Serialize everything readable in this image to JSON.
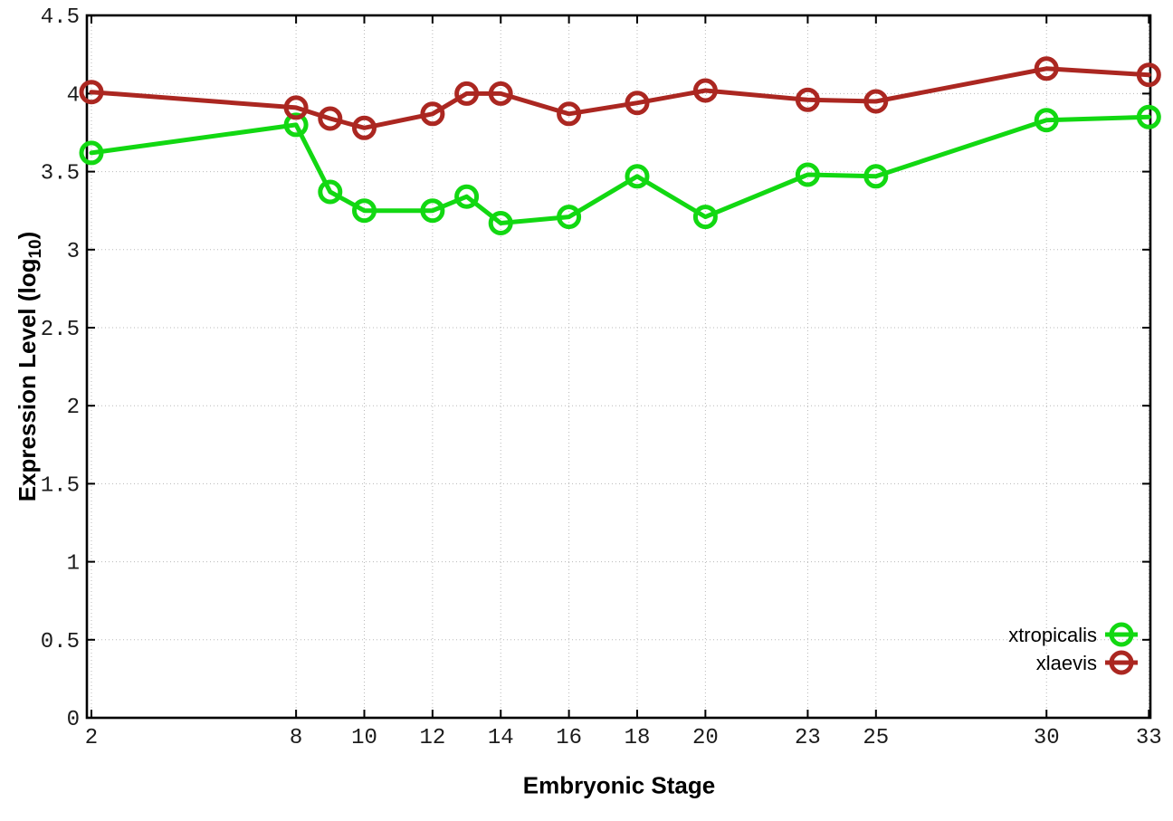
{
  "chart_data": {
    "type": "line",
    "title": "",
    "xlabel": "Embryonic Stage",
    "ylabel": "Expression Level (log10)",
    "ylabel_parts": {
      "pre": "Expression Level (log",
      "sub": "10",
      "post": ")"
    },
    "xlim": [
      2,
      33
    ],
    "ylim": [
      0,
      4.5
    ],
    "grid": true,
    "legend_position": "bottom-right",
    "xticks": [
      2,
      8,
      10,
      12,
      14,
      16,
      18,
      20,
      23,
      25,
      30,
      33
    ],
    "yticks": [
      0,
      0.5,
      1,
      1.5,
      2,
      2.5,
      3,
      3.5,
      4,
      4.5
    ],
    "x": [
      2,
      8,
      9,
      10,
      12,
      13,
      14,
      16,
      18,
      20,
      23,
      25,
      30,
      33
    ],
    "series": [
      {
        "name": "xtropicalis",
        "color": "#12d812",
        "values": [
          3.62,
          3.8,
          3.37,
          3.25,
          3.25,
          3.34,
          3.17,
          3.21,
          3.47,
          3.21,
          3.48,
          3.47,
          3.83,
          3.85
        ]
      },
      {
        "name": "xlaevis",
        "color": "#ab2721",
        "values": [
          4.01,
          3.91,
          3.84,
          3.78,
          3.87,
          4.0,
          4.0,
          3.87,
          3.94,
          4.02,
          3.96,
          3.95,
          4.16,
          4.12
        ]
      }
    ],
    "style": {
      "background": "#ffffff",
      "border_color": "#000000",
      "grid_color": "#b8b8b8",
      "tick_label_color": "#1c1c1c",
      "legend_text_color": "#000000"
    }
  }
}
